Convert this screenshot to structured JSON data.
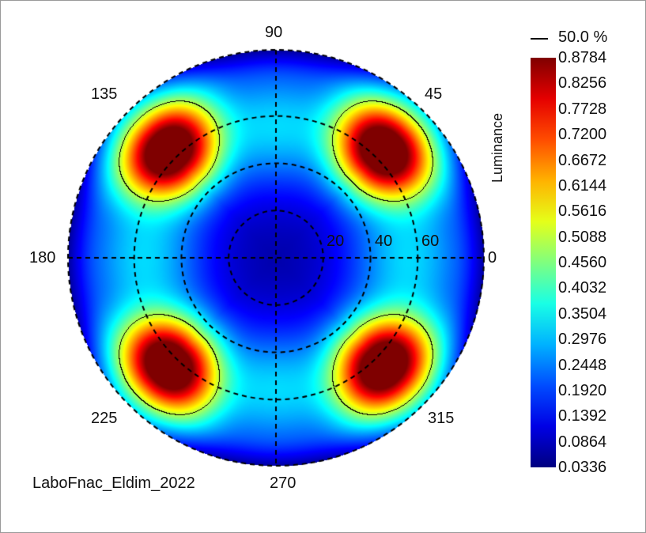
{
  "chart_data": {
    "type": "heatmap",
    "projection": "polar",
    "quantity_label": "Luminance",
    "azimuth_labels": [
      "0",
      "45",
      "90",
      "135",
      "180",
      "225",
      "270",
      "315"
    ],
    "incidence_ring_labels": [
      "20",
      "40",
      "60"
    ],
    "incidence_rings_deg": [
      20,
      40,
      60
    ],
    "incidence_max_deg": 88,
    "color_range": [
      0.0336,
      0.8784
    ],
    "colormap": "jet",
    "colorbar_ticks": [
      "0.8784",
      "0.8256",
      "0.7728",
      "0.7200",
      "0.6672",
      "0.6144",
      "0.5616",
      "0.5088",
      "0.4560",
      "0.4032",
      "0.3504",
      "0.2976",
      "0.2448",
      "0.1920",
      "0.1392",
      "0.0864",
      "0.0336"
    ],
    "contour_label": "50.0 %",
    "contour_level": 0.5,
    "lobes": [
      {
        "azimuth_deg": 45,
        "incidence_deg": 65,
        "peak": 0.8784
      },
      {
        "azimuth_deg": 135,
        "incidence_deg": 65,
        "peak": 0.8784
      },
      {
        "azimuth_deg": 225,
        "incidence_deg": 65,
        "peak": 0.8784
      },
      {
        "azimuth_deg": 315,
        "incidence_deg": 65,
        "peak": 0.8784
      }
    ],
    "footer": "LaboFnac_Eldim_2022"
  }
}
